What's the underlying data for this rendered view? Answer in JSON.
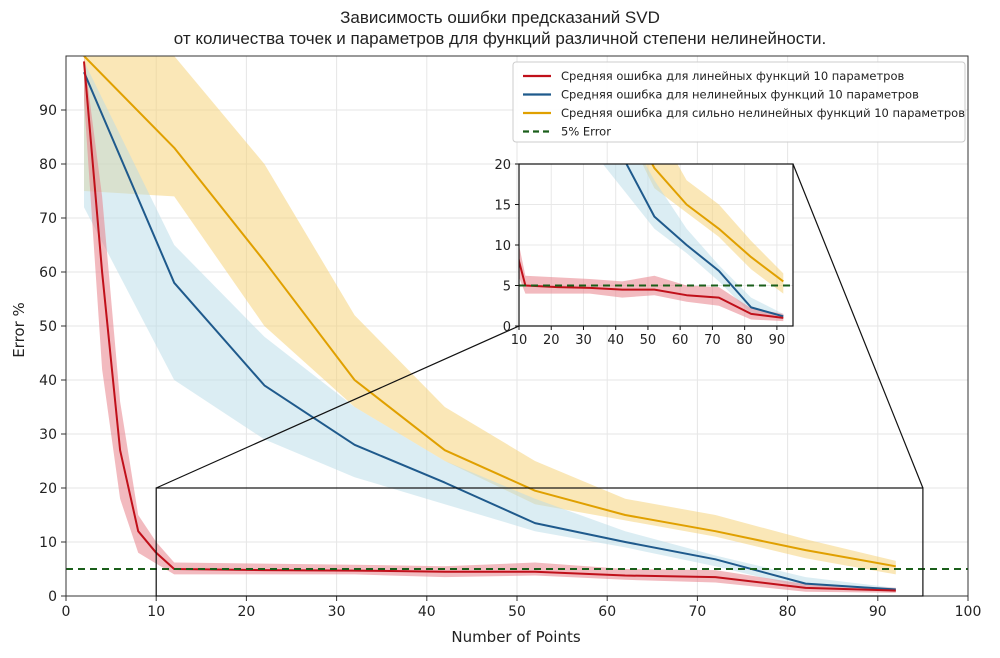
{
  "chart_data": {
    "type": "line",
    "title": "Зависимость ошибки предсказаний SVD",
    "subtitle": "от количества точек и параметров для функций различной степени нелинейности.",
    "xlabel": "Number of Points",
    "ylabel": "Error %",
    "xlim": [
      0,
      100
    ],
    "ylim": [
      0,
      100
    ],
    "xticks": [
      0,
      10,
      20,
      30,
      40,
      50,
      60,
      70,
      80,
      90,
      100
    ],
    "yticks": [
      0,
      10,
      20,
      30,
      40,
      50,
      60,
      70,
      80,
      90
    ],
    "grid": true,
    "legend_position": "top-right",
    "series": [
      {
        "name": "Средняя ошибка для линейных функций 10 параметров",
        "color": "#c0101a",
        "band_color": "#e8828a",
        "x": [
          2,
          4,
          6,
          8,
          10,
          12,
          22,
          32,
          42,
          52,
          62,
          72,
          82,
          92
        ],
        "y": [
          99,
          60,
          27,
          12,
          8,
          5,
          4.8,
          4.7,
          4.5,
          4.5,
          3.8,
          3.5,
          1.5,
          1.0
        ],
        "lower": [
          92,
          42,
          18,
          8,
          6,
          4,
          4,
          4,
          3.5,
          3.8,
          3,
          2.5,
          0.8,
          0.6
        ],
        "upper": [
          100,
          74,
          36,
          15,
          10,
          6.2,
          6,
          5.8,
          5.5,
          6.2,
          5,
          4.8,
          2.2,
          1.5
        ]
      },
      {
        "name": "Средняя ошибка для нелинейных функций 10 параметров",
        "color": "#1f5a8c",
        "band_color": "#b8dce8",
        "x": [
          2,
          12,
          22,
          32,
          42,
          52,
          62,
          72,
          82,
          92
        ],
        "y": [
          97,
          58,
          39,
          28,
          21,
          13.5,
          10,
          6.8,
          2.3,
          1.2
        ],
        "lower": [
          72,
          40,
          29,
          22,
          17,
          12,
          9,
          5.5,
          1.5,
          0.8
        ],
        "upper": [
          99,
          65,
          48,
          35,
          25,
          18,
          12,
          7.5,
          3.5,
          1.5
        ]
      },
      {
        "name": "Средняя ошибка для сильно нелинейных функций 10 параметров",
        "color": "#e0a000",
        "band_color": "#f5d070",
        "x": [
          2,
          12,
          22,
          32,
          42,
          52,
          62,
          72,
          82,
          92
        ],
        "y": [
          100,
          83,
          62,
          40,
          27,
          19.5,
          15,
          12,
          8.5,
          5.5
        ],
        "lower": [
          75,
          74,
          50,
          35,
          25,
          17,
          14,
          11,
          7,
          4
        ],
        "upper": [
          100,
          100,
          80,
          52,
          35,
          25,
          18,
          15,
          10.5,
          6.5
        ]
      },
      {
        "name": "5% Error",
        "color": "#1a5e1a",
        "style": "dashed",
        "y_constant": 5
      }
    ],
    "inset": {
      "xlim": [
        10,
        95
      ],
      "ylim": [
        0,
        20
      ],
      "xticks": [
        10,
        20,
        30,
        40,
        50,
        60,
        70,
        80,
        90
      ],
      "yticks": [
        0,
        5,
        10,
        15,
        20
      ],
      "zoom_region": {
        "x": [
          10,
          95
        ],
        "y": [
          0,
          20
        ]
      }
    }
  }
}
